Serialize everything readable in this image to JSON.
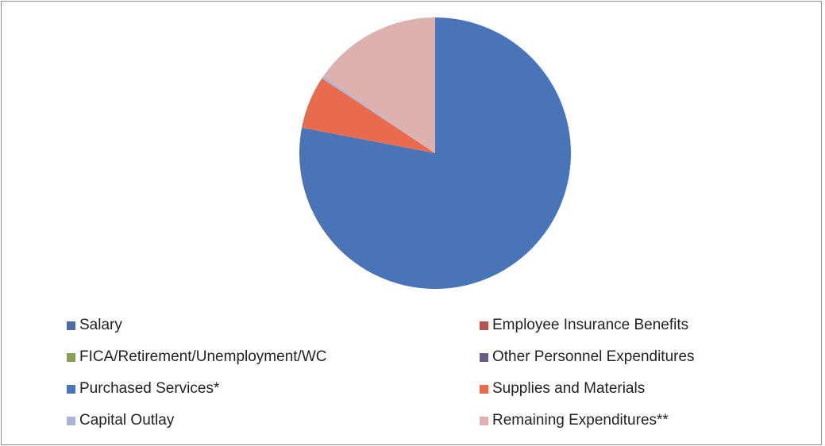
{
  "chart_data": {
    "type": "pie",
    "title": "",
    "start_angle_deg": 0,
    "direction": "clockwise",
    "slices": [
      {
        "label": "Salary",
        "value": 0,
        "color": "#4f6aa8"
      },
      {
        "label": "Employee Insurance Benefits",
        "value": 0,
        "color": "#b85450"
      },
      {
        "label": "FICA/Retirement/Unemployment/WC",
        "value": 0,
        "color": "#86a059"
      },
      {
        "label": "Other Personnel Expenditures",
        "value": 0,
        "color": "#6a5a86"
      },
      {
        "label": "Purchased Services*",
        "value": 78.0,
        "color": "#4a74b8"
      },
      {
        "label": "Supplies and Materials",
        "value": 6.3,
        "color": "#e96b4e"
      },
      {
        "label": "Capital Outlay",
        "value": 0.3,
        "color": "#aab3d8"
      },
      {
        "label": "Remaining Expenditures**",
        "value": 15.4,
        "color": "#ddb1ae"
      }
    ],
    "legend_position": "bottom",
    "grid": false
  }
}
